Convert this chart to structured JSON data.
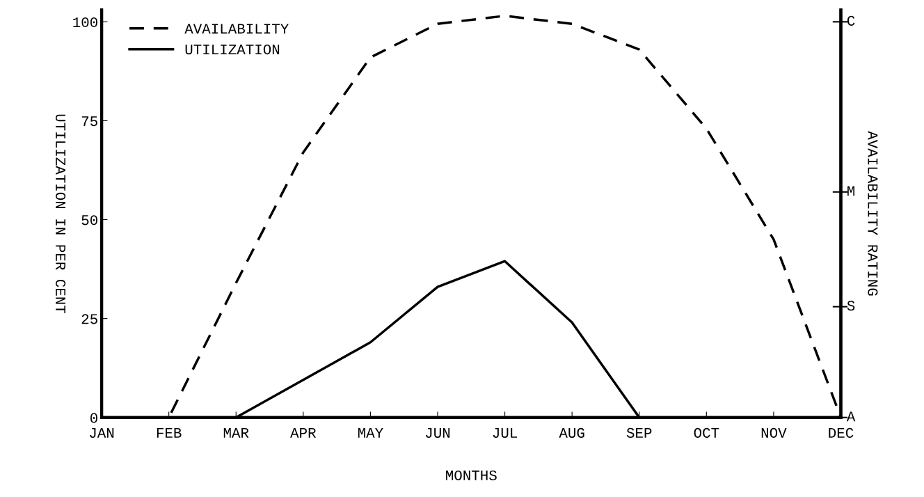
{
  "chart_data": {
    "type": "line",
    "xlabel": "MONTHS",
    "ylabel": "UTILIZATION IN PER CENT",
    "y2label": "AVAILABILITY RATING",
    "categories": [
      "JAN",
      "FEB",
      "MAR",
      "APR",
      "MAY",
      "JUN",
      "JUL",
      "AUG",
      "SEP",
      "OCT",
      "NOV",
      "DEC"
    ],
    "ylim": [
      0,
      103
    ],
    "yticks": [
      0,
      25,
      50,
      75,
      100
    ],
    "ref_lines": [
      {
        "axis": "y",
        "value": 0,
        "label": "A"
      },
      {
        "axis": "y",
        "value": 28,
        "label": "S"
      },
      {
        "axis": "y",
        "value": 57,
        "label": "M"
      },
      {
        "axis": "y",
        "value": 100,
        "label": "C"
      }
    ],
    "legend": "top left",
    "grid": false,
    "series": [
      {
        "name": "AVAILABILITY",
        "color": "#000000",
        "line_style": "dashed",
        "values": [
          0,
          0,
          34,
          67,
          91,
          99.5,
          101.5,
          99.5,
          93,
          73,
          45,
          0
        ]
      },
      {
        "name": "UTILIZATION",
        "color": "#000000",
        "line_style": "solid",
        "values": [
          0,
          0,
          0,
          9.5,
          19,
          33,
          39.5,
          24,
          0,
          0,
          0,
          0
        ]
      }
    ]
  }
}
